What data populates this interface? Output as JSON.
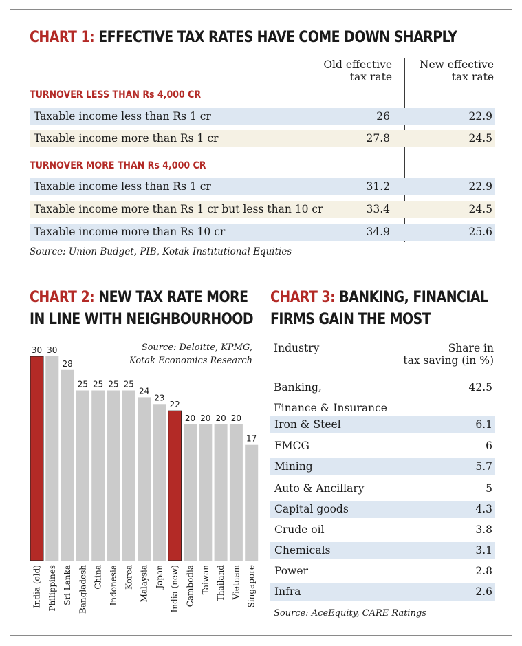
{
  "chart1": {
    "title_prefix": "CHART 1:",
    "title_rest": " EFFECTIVE TAX RATES HAVE COME DOWN SHARPLY",
    "col_old": [
      "Old effective",
      "tax rate"
    ],
    "col_new": [
      "New effective",
      "tax rate"
    ],
    "source": "Source: Union Budget, PIB, Kotak Institutional Equities"
  },
  "chart2": {
    "title_prefix": "CHART 2:",
    "title_rest_1": " NEW TAX RATE MORE",
    "title_rest_2": "IN LINE WITH NEIGHBOURHOOD",
    "source_1": "Source: Deloitte, KPMG,",
    "source_2": "Kotak Economics Research"
  },
  "chart3": {
    "title_prefix": "CHART 3:",
    "title_rest_1": " BANKING, FINANCIAL",
    "title_rest_2": "FIRMS GAIN THE MOST",
    "col_industry": "Industry",
    "col_share": [
      "Share in",
      "tax saving (in %)"
    ],
    "source": "Source: AceEquity, CARE Ratings"
  },
  "colors": {
    "red": "#b32a26",
    "grey_bar": "#cbcbcb",
    "blue_row": "#dde7f2",
    "cream_row": "#f5f1e4"
  },
  "chart_data": [
    {
      "type": "table",
      "title": "CHART 1: EFFECTIVE TAX RATES HAVE COME DOWN SHARPLY",
      "columns": [
        "Old effective tax rate",
        "New effective tax rate"
      ],
      "groups": [
        {
          "name": "TURNOVER LESS THAN Rs 4,000 CR",
          "rows": [
            {
              "label": "Taxable income less than Rs 1 cr",
              "old": "26",
              "new": "22.9"
            },
            {
              "label": "Taxable income more than Rs 1 cr",
              "old": "27.8",
              "new": "24.5"
            }
          ]
        },
        {
          "name": "TURNOVER MORE THAN Rs 4,000 CR",
          "rows": [
            {
              "label": "Taxable income less than Rs 1 cr",
              "old": "31.2",
              "new": "22.9"
            },
            {
              "label": "Taxable income more than Rs 1 cr but less than 10 cr",
              "old": "33.4",
              "new": "24.5"
            },
            {
              "label": "Taxable income more than Rs 10 cr",
              "old": "34.9",
              "new": "25.6"
            }
          ]
        }
      ]
    },
    {
      "type": "bar",
      "title": "CHART 2: NEW TAX RATE MORE IN LINE WITH NEIGHBOURHOOD",
      "categories": [
        "India (old)",
        "Philippines",
        "Sri Lanka",
        "Bangladesh",
        "China",
        "Indonesia",
        "Korea",
        "Malaysia",
        "Japan",
        "India (new)",
        "Cambodia",
        "Taiwan",
        "Thailand",
        "Vietnam",
        "Singapore"
      ],
      "values": [
        30,
        30,
        28,
        25,
        25,
        25,
        25,
        24,
        23,
        22,
        20,
        20,
        20,
        20,
        17
      ],
      "highlight": [
        "India (old)",
        "India (new)"
      ],
      "ylim": [
        0,
        30
      ]
    },
    {
      "type": "table",
      "title": "CHART 3: BANKING, FINANCIAL FIRMS GAIN THE MOST",
      "columns": [
        "Industry",
        "Share in tax saving (in %)"
      ],
      "rows": [
        {
          "label": "Banking,",
          "label2": "Finance & Insurance",
          "value": "42.5"
        },
        {
          "label": "Iron & Steel",
          "value": "6.1"
        },
        {
          "label": "FMCG",
          "value": "6"
        },
        {
          "label": "Mining",
          "value": "5.7"
        },
        {
          "label": "Auto & Ancillary",
          "value": "5"
        },
        {
          "label": "Capital goods",
          "value": "4.3"
        },
        {
          "label": "Crude oil",
          "value": "3.8"
        },
        {
          "label": "Chemicals",
          "value": "3.1"
        },
        {
          "label": "Power",
          "value": "2.8"
        },
        {
          "label": "Infra",
          "value": "2.6"
        }
      ]
    }
  ]
}
